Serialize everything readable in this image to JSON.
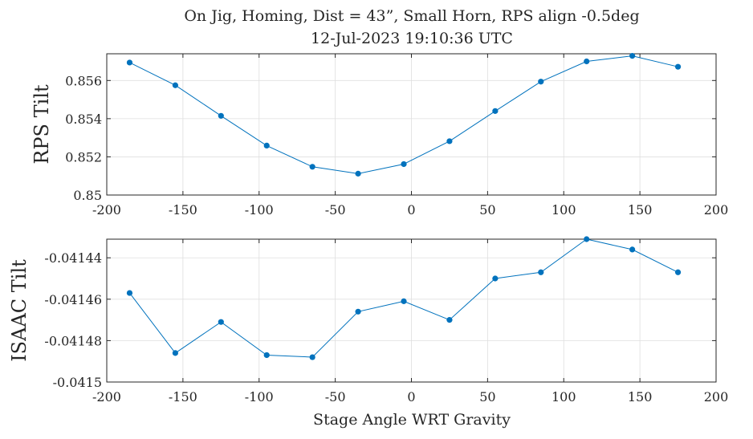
{
  "figure": {
    "title_line1": "On Jig, Homing, Dist = 43”, Small Horn, RPS align -0.5deg",
    "title_line2": "12-Jul-2023 19:10:36 UTC",
    "xlabel": "Stage Angle WRT Gravity"
  },
  "colors": {
    "series": "#0072BD",
    "grid": "#dfdfdf",
    "axis": "#262626"
  },
  "chart_data": [
    {
      "type": "line",
      "ylabel": "RPS Tilt",
      "grid": true,
      "xlim": [
        -200,
        200
      ],
      "ylim": [
        0.85,
        0.8574
      ],
      "xticks": [
        -200,
        -150,
        -100,
        -50,
        0,
        50,
        100,
        150,
        200
      ],
      "xtick_labels": [
        "-200",
        "-150",
        "-100",
        "-50",
        "0",
        "50",
        "100",
        "150",
        "200"
      ],
      "yticks": [
        0.85,
        0.852,
        0.854,
        0.856
      ],
      "ytick_labels": [
        "0.85",
        "0.852",
        "0.854",
        "0.856"
      ],
      "series": [
        {
          "x": [
            -185,
            -155,
            -125,
            -95,
            -65,
            -35,
            -5,
            25,
            55,
            85,
            115,
            145,
            175
          ],
          "y": [
            0.85694,
            0.85575,
            0.85415,
            0.85259,
            0.85148,
            0.85112,
            0.85162,
            0.85282,
            0.8544,
            0.85594,
            0.857,
            0.85729,
            0.85672
          ]
        }
      ]
    },
    {
      "type": "line",
      "ylabel": "ISAAC Tilt",
      "grid": true,
      "xlim": [
        -200,
        200
      ],
      "ylim": [
        -0.0415,
        -0.041431
      ],
      "xticks": [
        -200,
        -150,
        -100,
        -50,
        0,
        50,
        100,
        150,
        200
      ],
      "xtick_labels": [
        "-200",
        "-150",
        "-100",
        "-50",
        "0",
        "50",
        "100",
        "150",
        "200"
      ],
      "yticks": [
        -0.0415,
        -0.04148,
        -0.04146,
        -0.04144
      ],
      "ytick_labels": [
        "-0.0415",
        "-0.04148",
        "-0.04146",
        "-0.04144"
      ],
      "series": [
        {
          "x": [
            -185,
            -155,
            -125,
            -95,
            -65,
            -35,
            -5,
            25,
            55,
            85,
            115,
            145,
            175
          ],
          "y": [
            -0.041457,
            -0.041486,
            -0.041471,
            -0.041487,
            -0.041488,
            -0.041466,
            -0.041461,
            -0.04147,
            -0.04145,
            -0.041447,
            -0.041431,
            -0.041436,
            -0.041447
          ]
        }
      ]
    }
  ]
}
